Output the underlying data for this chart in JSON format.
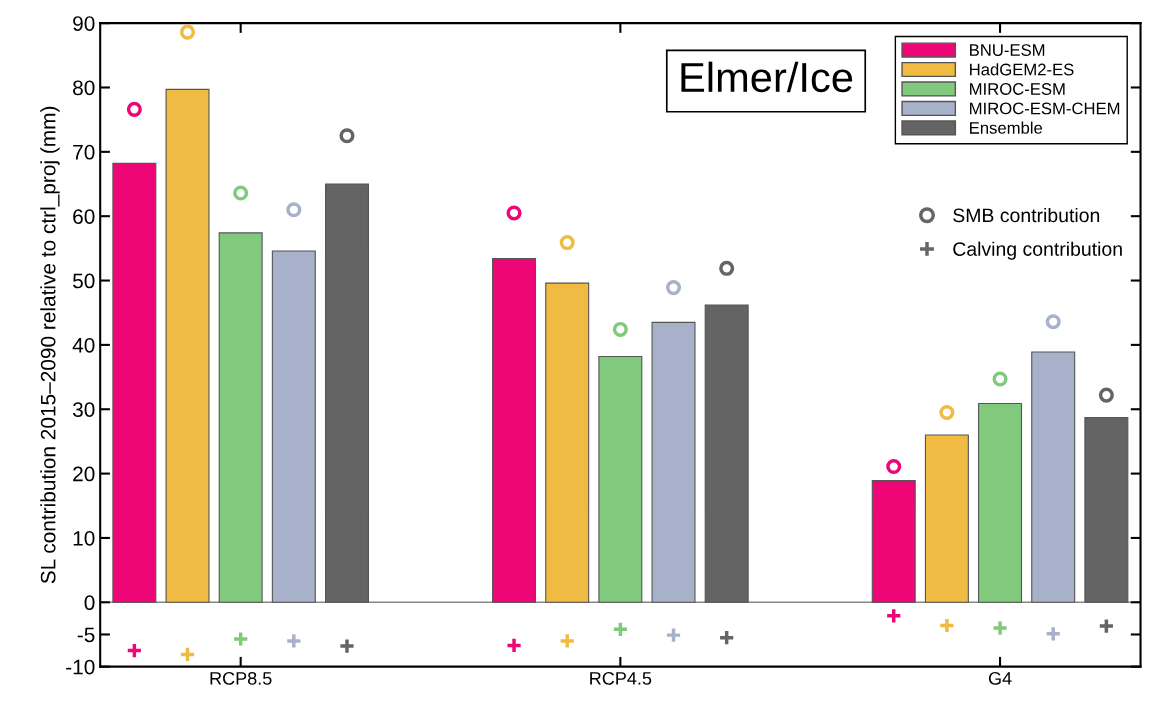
{
  "chart_data": {
    "type": "bar",
    "title": "Elmer/Ice",
    "ylabel": "SL contribution 2015–2090 relative to ctrl_proj (mm)",
    "categories": [
      "RCP8.5",
      "RCP4.5",
      "G4"
    ],
    "series": [
      {
        "name": "BNU-ESM",
        "color": "#ee0677",
        "values": [
          68.2,
          53.4,
          18.9
        ]
      },
      {
        "name": "HadGEM2-ES",
        "color": "#efbb42",
        "values": [
          79.7,
          49.6,
          26.0
        ]
      },
      {
        "name": "MIROC-ESM",
        "color": "#80c97d",
        "values": [
          57.4,
          38.2,
          30.9
        ]
      },
      {
        "name": "MIROC-ESM-CHEM",
        "color": "#a7b1c9",
        "values": [
          54.6,
          43.5,
          38.9
        ]
      },
      {
        "name": "Ensemble",
        "color": "#646464",
        "values": [
          65.0,
          46.2,
          28.7
        ]
      },
      {
        "type": "scatter",
        "name": "SMB contribution",
        "marker": "circle",
        "color": "#666666",
        "x": [
          "RCP8.5",
          "RCP8.5",
          "RCP8.5",
          "RCP8.5",
          "RCP8.5",
          "RCP4.5",
          "RCP4.5",
          "RCP4.5",
          "RCP4.5",
          "RCP4.5",
          "G4",
          "G4",
          "G4",
          "G4",
          "G4"
        ],
        "colors": [
          "#ee0677",
          "#efbb42",
          "#80c97d",
          "#a7b1c9",
          "#646464",
          "#ee0677",
          "#efbb42",
          "#80c97d",
          "#a7b1c9",
          "#646464",
          "#ee0677",
          "#efbb42",
          "#80c97d",
          "#a7b1c9",
          "#646464"
        ],
        "values": [
          76.6,
          88.6,
          63.6,
          61.0,
          72.5,
          60.5,
          55.9,
          42.4,
          48.9,
          51.9,
          21.1,
          29.5,
          34.7,
          43.6,
          32.2
        ]
      },
      {
        "type": "scatter",
        "name": "Calving contribution",
        "marker": "cross",
        "color": "#666666",
        "x": [
          "RCP8.5",
          "RCP8.5",
          "RCP8.5",
          "RCP8.5",
          "RCP8.5",
          "RCP4.5",
          "RCP4.5",
          "RCP4.5",
          "RCP4.5",
          "RCP4.5",
          "G4",
          "G4",
          "G4",
          "G4",
          "G4"
        ],
        "colors": [
          "#ee0677",
          "#efbb42",
          "#80c97d",
          "#a7b1c9",
          "#646464",
          "#ee0677",
          "#efbb42",
          "#80c97d",
          "#a7b1c9",
          "#646464",
          "#ee0677",
          "#efbb42",
          "#80c97d",
          "#a7b1c9",
          "#646464"
        ],
        "values": [
          -7.5,
          -8.1,
          -5.7,
          -6.0,
          -6.8,
          -6.7,
          -6.0,
          -4.2,
          -5.1,
          -5.5,
          -2.1,
          -3.6,
          -4.0,
          -4.9,
          -3.7
        ]
      }
    ],
    "ylim": [
      -10,
      90
    ],
    "yticks": [
      -10,
      -5,
      0,
      10,
      20,
      30,
      40,
      50,
      60,
      70,
      80,
      90
    ],
    "ref_lines": [
      {
        "axis": "y",
        "value": 0,
        "color": "#888888"
      }
    ],
    "legend": "top right",
    "grid": false
  }
}
